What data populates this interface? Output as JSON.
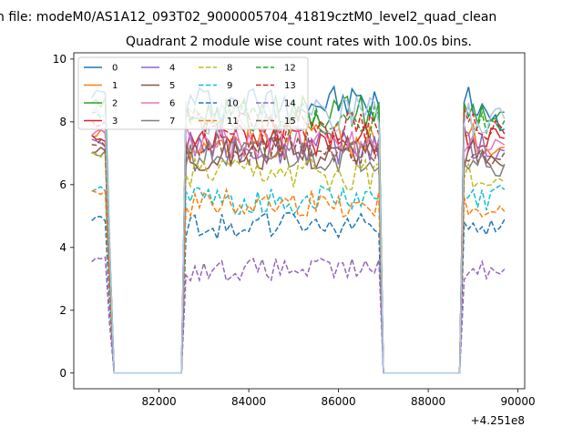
{
  "figure": {
    "suptitle": "n file: modeM0/AS1A12_093T02_9000005704_41819cztM0_level2_quad_clean"
  },
  "chart_data": {
    "type": "line",
    "title": "Quadrant 2 module wise count rates with 100.0s bins.",
    "xlabel": "",
    "ylabel": "",
    "xlim": [
      80100,
      90150
    ],
    "ylim": [
      -0.5,
      10.2
    ],
    "x_offset_label": "+4.251e8",
    "x_ticks": [
      82000,
      84000,
      86000,
      88000,
      90000
    ],
    "x_tick_labels": [
      "82000",
      "84000",
      "86000",
      "88000",
      "90000"
    ],
    "y_ticks": [
      0,
      2,
      4,
      6,
      8,
      10
    ],
    "y_tick_labels": [
      "0",
      "2",
      "4",
      "6",
      "8",
      "10"
    ],
    "grid": false,
    "legend": {
      "placement": "upper-left",
      "columns": 4
    },
    "x": [
      80500,
      80600,
      80700,
      80800,
      80900,
      81000,
      81100,
      81200,
      81300,
      81400,
      81500,
      81600,
      81700,
      81800,
      81900,
      82000,
      82100,
      82200,
      82300,
      82400,
      82500,
      82600,
      82700,
      82800,
      82900,
      83000,
      83100,
      83200,
      83300,
      83400,
      83500,
      83600,
      83700,
      83800,
      83900,
      84000,
      84100,
      84200,
      84300,
      84400,
      84500,
      84600,
      84700,
      84800,
      84900,
      85000,
      85100,
      85200,
      85300,
      85400,
      85500,
      85600,
      85700,
      85800,
      85900,
      86000,
      86100,
      86200,
      86300,
      86400,
      86500,
      86600,
      86700,
      86800,
      86900,
      87000,
      87100,
      87200,
      87300,
      87400,
      87500,
      87600,
      87700,
      87800,
      87900,
      88000,
      88100,
      88200,
      88300,
      88400,
      88500,
      88600,
      88700,
      88800,
      88900,
      89000,
      89100,
      89200,
      89300,
      89400,
      89500,
      89600,
      89700
    ],
    "series": [
      {
        "name": "0",
        "color": "#1f77b4",
        "dash": "solid",
        "level": 8.6,
        "start": 8.9,
        "end": 8.0
      },
      {
        "name": "1",
        "color": "#ff7f0e",
        "dash": "solid",
        "level": 7.4,
        "start": 7.6,
        "end": 7.2
      },
      {
        "name": "2",
        "color": "#2ca02c",
        "dash": "solid",
        "level": 8.3,
        "start": 8.6,
        "end": 8.1
      },
      {
        "name": "3",
        "color": "#d62728",
        "dash": "solid",
        "level": 7.5,
        "start": 7.5,
        "end": 7.6
      },
      {
        "name": "4",
        "color": "#9467bd",
        "dash": "solid",
        "level": 7.2,
        "start": 7.3,
        "end": 7.0
      },
      {
        "name": "5",
        "color": "#8c564b",
        "dash": "solid",
        "level": 7.0,
        "start": 7.1,
        "end": 6.8
      },
      {
        "name": "6",
        "color": "#e377c2",
        "dash": "solid",
        "level": 7.4,
        "start": 7.6,
        "end": 7.3
      },
      {
        "name": "7",
        "color": "#7f7f7f",
        "dash": "solid",
        "level": 6.9,
        "start": 7.0,
        "end": 6.5
      },
      {
        "name": "8",
        "color": "#bcbd22",
        "dash": "dashed",
        "level": 6.3,
        "start": 6.9,
        "end": 6.2
      },
      {
        "name": "9",
        "color": "#17becf",
        "dash": "dashed",
        "level": 5.5,
        "start": 5.9,
        "end": 5.8
      },
      {
        "name": "10",
        "color": "#1f77b4",
        "dash": "dashed",
        "level": 4.7,
        "start": 4.9,
        "end": 4.7
      },
      {
        "name": "11",
        "color": "#ff7f0e",
        "dash": "dashed",
        "level": 5.4,
        "start": 5.8,
        "end": 5.2
      },
      {
        "name": "12",
        "color": "#2ca02c",
        "dash": "dashed",
        "level": 8.1,
        "start": 8.2,
        "end": 7.9
      },
      {
        "name": "13",
        "color": "#d62728",
        "dash": "dashed",
        "level": 7.9,
        "start": 7.9,
        "end": 7.8
      },
      {
        "name": "14",
        "color": "#9467bd",
        "dash": "dashed",
        "level": 3.3,
        "start": 3.6,
        "end": 3.3
      },
      {
        "name": "15",
        "color": "#8c564b",
        "dash": "dashed",
        "level": 7.2,
        "start": 7.3,
        "end": 6.8
      },
      {
        "name": "",
        "color": "#aec7e8",
        "dash": "solid",
        "level": 8.2,
        "start": 8.3,
        "end": 8.2
      }
    ],
    "gaps": [
      [
        81000,
        82500
      ],
      [
        87000,
        88700
      ]
    ]
  }
}
